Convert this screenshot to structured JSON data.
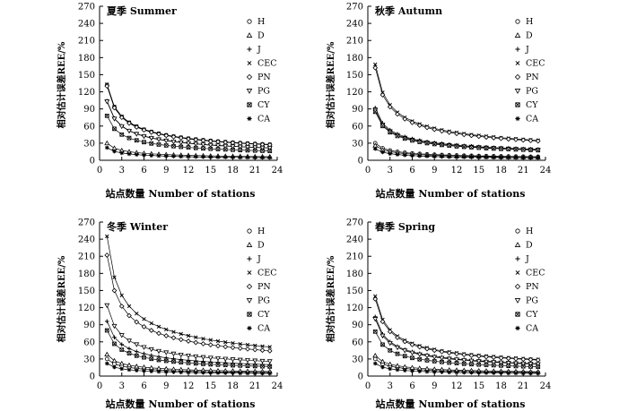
{
  "chart_data": [
    {
      "type": "line",
      "title": "夏季 Summer",
      "xlabel": "站点数量 Number of stations",
      "ylabel": "相对估计误差REE/%",
      "xlim": [
        0,
        24
      ],
      "ylim": [
        0,
        270
      ],
      "xticks": [
        0,
        3,
        6,
        9,
        12,
        15,
        18,
        21,
        24
      ],
      "yticks": [
        0,
        30,
        60,
        90,
        120,
        150,
        180,
        210,
        240,
        270
      ],
      "x": [
        1,
        2,
        3,
        4,
        5,
        6,
        7,
        8,
        9,
        10,
        11,
        12,
        13,
        14,
        15,
        16,
        17,
        18,
        19,
        20,
        21,
        22,
        23
      ],
      "series": [
        {
          "name": "H",
          "k": 132
        },
        {
          "name": "D",
          "k": 30
        },
        {
          "name": "J",
          "k": 104
        },
        {
          "name": "CEC",
          "k": 133
        },
        {
          "name": "PN",
          "k": 130
        },
        {
          "name": "PG",
          "k": 103
        },
        {
          "name": "CY",
          "k": 78
        },
        {
          "name": "CA",
          "k": 22
        }
      ]
    },
    {
      "type": "line",
      "title": "秋季 Autumn",
      "xlabel": "站点数量 Number of stations",
      "ylabel": "相对估计误差REE/%",
      "xlim": [
        0,
        24
      ],
      "ylim": [
        0,
        270
      ],
      "xticks": [
        0,
        3,
        6,
        9,
        12,
        15,
        18,
        21,
        24
      ],
      "yticks": [
        0,
        30,
        60,
        90,
        120,
        150,
        180,
        210,
        240,
        270
      ],
      "x": [
        1,
        2,
        3,
        4,
        5,
        6,
        7,
        8,
        9,
        10,
        11,
        12,
        13,
        14,
        15,
        16,
        17,
        18,
        19,
        20,
        21,
        22,
        23
      ],
      "series": [
        {
          "name": "H",
          "k": 30
        },
        {
          "name": "D",
          "k": 26
        },
        {
          "name": "J",
          "k": 92
        },
        {
          "name": "CEC",
          "k": 168
        },
        {
          "name": "PN",
          "k": 162
        },
        {
          "name": "PG",
          "k": 88
        },
        {
          "name": "CY",
          "k": 85
        },
        {
          "name": "CA",
          "k": 20
        }
      ]
    },
    {
      "type": "line",
      "title": "冬季 Winter",
      "xlabel": "站点数量 Number of stations",
      "ylabel": "相对估计误差REE/%",
      "xlim": [
        0,
        24
      ],
      "ylim": [
        0,
        270
      ],
      "xticks": [
        0,
        3,
        6,
        9,
        12,
        15,
        18,
        21,
        24
      ],
      "yticks": [
        0,
        30,
        60,
        90,
        120,
        150,
        180,
        210,
        240,
        270
      ],
      "x": [
        1,
        2,
        3,
        4,
        5,
        6,
        7,
        8,
        9,
        10,
        11,
        12,
        13,
        14,
        15,
        16,
        17,
        18,
        19,
        20,
        21,
        22,
        23
      ],
      "series": [
        {
          "name": "H",
          "k": 30
        },
        {
          "name": "D",
          "k": 38
        },
        {
          "name": "J",
          "k": 96
        },
        {
          "name": "CEC",
          "k": 245
        },
        {
          "name": "PN",
          "k": 212
        },
        {
          "name": "PG",
          "k": 124
        },
        {
          "name": "CY",
          "k": 80
        },
        {
          "name": "CA",
          "k": 22
        }
      ]
    },
    {
      "type": "line",
      "title": "春季 Spring",
      "xlabel": "站点数量 Number of stations",
      "ylabel": "相对估计误差REE/%",
      "xlim": [
        0,
        24
      ],
      "ylim": [
        0,
        270
      ],
      "xticks": [
        0,
        3,
        6,
        9,
        12,
        15,
        18,
        21,
        24
      ],
      "yticks": [
        0,
        30,
        60,
        90,
        120,
        150,
        180,
        210,
        240,
        270
      ],
      "x": [
        1,
        2,
        3,
        4,
        5,
        6,
        7,
        8,
        9,
        10,
        11,
        12,
        13,
        14,
        15,
        16,
        17,
        18,
        19,
        20,
        21,
        22,
        23
      ],
      "series": [
        {
          "name": "H",
          "k": 30
        },
        {
          "name": "D",
          "k": 36
        },
        {
          "name": "J",
          "k": 104
        },
        {
          "name": "CEC",
          "k": 140
        },
        {
          "name": "PN",
          "k": 135
        },
        {
          "name": "PG",
          "k": 100
        },
        {
          "name": "CY",
          "k": 78
        },
        {
          "name": "CA",
          "k": 22
        }
      ]
    }
  ],
  "curve_model": "value(x) = k / sqrt(x)",
  "legend_markers": {
    "H": "circle",
    "D": "triangle-up",
    "J": "plus",
    "CEC": "cross",
    "PN": "diamond",
    "PG": "triangle-down",
    "CY": "boxed-cross",
    "CA": "asterisk"
  }
}
